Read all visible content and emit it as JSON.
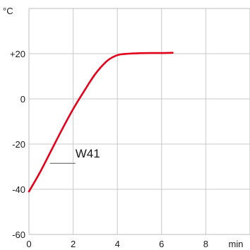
{
  "chart_data": {
    "type": "line",
    "title": "",
    "xlabel": "min",
    "ylabel": "°C",
    "xlim": [
      0,
      10
    ],
    "ylim": [
      -60,
      40
    ],
    "xticks": [
      0,
      2,
      4,
      6,
      8
    ],
    "yticks": [
      -60,
      -40,
      -20,
      0,
      20
    ],
    "xtick_labels": [
      "0",
      "2",
      "4",
      "6",
      "8"
    ],
    "ytick_labels": [
      "-60",
      "-40",
      "-20",
      "0",
      "+20"
    ],
    "grid": true,
    "series": [
      {
        "color": "#e2001a",
        "x": [
          0,
          0.5,
          1,
          1.5,
          2,
          2.5,
          3,
          3.5,
          3.8,
          4.1,
          4.5,
          5,
          5.5,
          6,
          6.5
        ],
        "y": [
          -41,
          -32.5,
          -23,
          -13.5,
          -4.5,
          3.5,
          11,
          16.5,
          18.5,
          19.6,
          20,
          20.2,
          20.3,
          20.3,
          20.4
        ]
      }
    ],
    "annotations": [
      {
        "text": "W41",
        "x": 2.1,
        "y": -26
      }
    ]
  }
}
